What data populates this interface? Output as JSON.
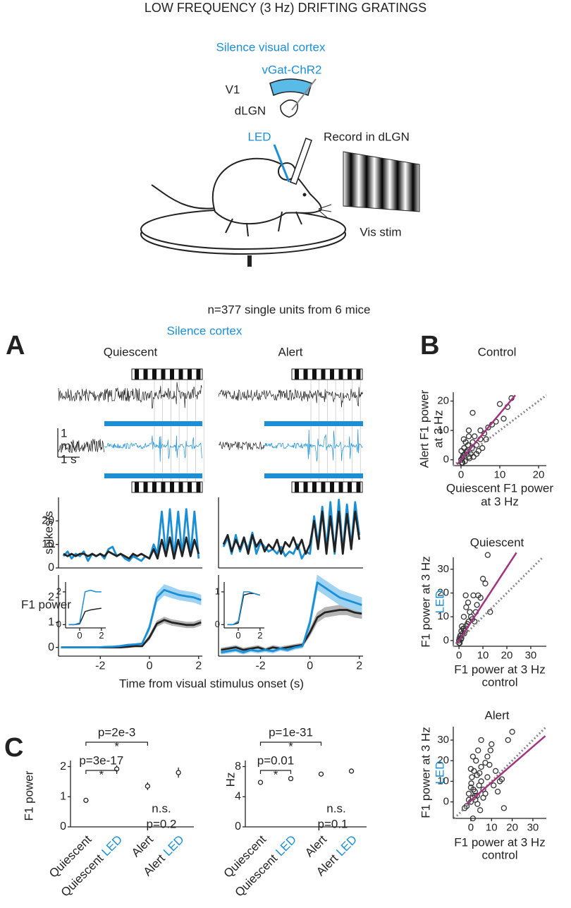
{
  "title": "LOW FREQUENCY (3 Hz) DRIFTING GRATINGS",
  "schematic": {
    "silence": "Silence visual cortex",
    "construct": "vGat-ChR2",
    "v1": "V1",
    "dlgn": "dLGN",
    "led": "LED",
    "record": "Record in dLGN",
    "stim": "Vis stim"
  },
  "sample": "n=377 single units from 6 mice",
  "panel_a": {
    "label": "A",
    "silence": "Silence cortex",
    "scale_bar": {
      "amplitude": "1",
      "unit": "mV",
      "time": "1 s"
    },
    "xlabel": "Time from visual stimulus onset (s)"
  },
  "panel_b": {
    "label": "B"
  },
  "panel_c": {
    "label": "C"
  },
  "chart_data": [
    {
      "type": "line",
      "title": "Quiescent",
      "ylabel": "spikes/s",
      "x": [
        -3.5,
        -3.33,
        -3.17,
        -3,
        -2.83,
        -2.67,
        -2.5,
        -2.33,
        -2.17,
        -2,
        -1.83,
        -1.67,
        -1.5,
        -1.33,
        -1.17,
        -1,
        -0.83,
        -0.67,
        -0.5,
        -0.33,
        -0.17,
        0,
        0.17,
        0.33,
        0.5,
        0.67,
        0.83,
        1,
        1.17,
        1.33,
        1.5,
        1.67,
        1.83,
        2
      ],
      "xlim": [
        -3.7,
        2.15
      ],
      "ylim": [
        0,
        30
      ],
      "yticks": [
        0,
        10,
        20
      ],
      "series": [
        {
          "color": "#1b8fd6",
          "values": [
            5,
            7,
            4,
            6,
            5,
            7,
            3,
            6,
            5,
            6,
            4,
            8,
            9,
            5,
            6,
            4,
            3,
            5,
            4,
            3,
            5,
            4,
            10,
            6,
            24,
            5,
            25,
            4,
            24,
            5,
            25,
            5,
            24,
            4
          ]
        },
        {
          "color": "#222222",
          "values": [
            6,
            5,
            6,
            5,
            6,
            6,
            5,
            6,
            5,
            6,
            5,
            7,
            6,
            5,
            6,
            5,
            4,
            6,
            5,
            6,
            5,
            4,
            8,
            4,
            12,
            5,
            13,
            4,
            12,
            5,
            13,
            5,
            12,
            6
          ]
        }
      ]
    },
    {
      "type": "line",
      "title": "Alert",
      "x": [
        -3.5,
        -3.33,
        -3.17,
        -3,
        -2.83,
        -2.67,
        -2.5,
        -2.33,
        -2.17,
        -2,
        -1.83,
        -1.67,
        -1.5,
        -1.33,
        -1.17,
        -1,
        -0.83,
        -0.67,
        -0.5,
        -0.33,
        -0.17,
        0,
        0.17,
        0.33,
        0.5,
        0.67,
        0.83,
        1,
        1.17,
        1.33,
        1.5,
        1.67,
        1.83,
        2
      ],
      "xlim": [
        -3.7,
        2.15
      ],
      "ylim": [
        0,
        30
      ],
      "series": [
        {
          "color": "#1b8fd6",
          "values": [
            9,
            13,
            6,
            14,
            7,
            12,
            8,
            15,
            6,
            11,
            9,
            7,
            8,
            6,
            9,
            5,
            7,
            6,
            10,
            4,
            7,
            6,
            22,
            10,
            26,
            8,
            28,
            6,
            29,
            7,
            27,
            9,
            28,
            14
          ]
        },
        {
          "color": "#222222",
          "values": [
            10,
            14,
            7,
            12,
            8,
            13,
            6,
            14,
            9,
            12,
            7,
            10,
            8,
            12,
            6,
            11,
            9,
            13,
            8,
            12,
            6,
            10,
            20,
            8,
            24,
            6,
            22,
            7,
            24,
            6,
            23,
            8,
            24,
            12
          ]
        }
      ]
    },
    {
      "type": "line",
      "ylabel": "F1 power",
      "x": [
        -3.6,
        -3.3,
        -3.0,
        -2.7,
        -2.4,
        -2.1,
        -1.8,
        -1.5,
        -1.2,
        -0.9,
        -0.6,
        -0.3,
        0,
        0.3,
        0.6,
        0.9,
        1.2,
        1.5,
        1.8,
        2.1
      ],
      "xlim": [
        -3.7,
        2.15
      ],
      "ylim": [
        -0.35,
        2.9
      ],
      "yticks": [
        0,
        1,
        2
      ],
      "xticks": [
        -2,
        0,
        2
      ],
      "series": [
        {
          "color": "#222222",
          "band_color": "#b3b3b3",
          "values": [
            0,
            0,
            0,
            0,
            0,
            0,
            0,
            0,
            0,
            0.02,
            0.05,
            0.05,
            0.4,
            0.95,
            1.1,
            1.0,
            0.95,
            0.9,
            0.9,
            1.0
          ],
          "errors": [
            0.03,
            0.03,
            0.03,
            0.03,
            0.03,
            0.03,
            0.03,
            0.03,
            0.03,
            0.03,
            0.03,
            0.03,
            0.1,
            0.12,
            0.12,
            0.12,
            0.12,
            0.12,
            0.12,
            0.12
          ]
        },
        {
          "color": "#1b8fd6",
          "band_color": "#9fd3f2",
          "values": [
            0,
            0,
            0,
            0,
            0,
            0,
            0.02,
            0.03,
            0.05,
            0.1,
            0.12,
            0.15,
            0.8,
            2.0,
            2.3,
            2.2,
            2.1,
            2.05,
            2.0,
            1.9
          ],
          "errors": [
            0.03,
            0.03,
            0.03,
            0.03,
            0.03,
            0.03,
            0.03,
            0.03,
            0.03,
            0.03,
            0.03,
            0.03,
            0.15,
            0.2,
            0.22,
            0.22,
            0.2,
            0.2,
            0.2,
            0.2
          ]
        }
      ]
    },
    {
      "type": "line",
      "x": [
        -3.6,
        -3.3,
        -3.0,
        -2.7,
        -2.4,
        -2.1,
        -1.8,
        -1.5,
        -1.2,
        -0.9,
        -0.6,
        -0.3,
        0,
        0.3,
        0.6,
        0.9,
        1.2,
        1.5,
        1.8,
        2.1
      ],
      "xlim": [
        -3.7,
        2.15
      ],
      "ylim": [
        -0.35,
        2.9
      ],
      "xticks": [
        -2,
        0,
        2
      ],
      "series": [
        {
          "color": "#222222",
          "band_color": "#b3b3b3",
          "values": [
            -0.1,
            -0.05,
            0,
            -0.1,
            -0.05,
            0,
            -0.1,
            0,
            -0.05,
            0,
            0.05,
            0.1,
            0.6,
            1.2,
            1.4,
            1.45,
            1.5,
            1.5,
            1.4,
            1.35
          ],
          "errors": [
            0.08,
            0.08,
            0.08,
            0.08,
            0.08,
            0.08,
            0.08,
            0.08,
            0.08,
            0.08,
            0.08,
            0.08,
            0.15,
            0.2,
            0.2,
            0.2,
            0.2,
            0.2,
            0.2,
            0.2
          ]
        },
        {
          "color": "#1b8fd6",
          "band_color": "#9fd3f2",
          "values": [
            -0.2,
            -0.15,
            -0.1,
            -0.2,
            -0.1,
            -0.15,
            -0.1,
            -0.15,
            -0.05,
            -0.1,
            0,
            0.05,
            1.0,
            2.6,
            2.4,
            2.2,
            2.0,
            1.9,
            1.8,
            1.7
          ],
          "errors": [
            0.08,
            0.08,
            0.08,
            0.08,
            0.08,
            0.08,
            0.08,
            0.08,
            0.08,
            0.08,
            0.08,
            0.08,
            0.2,
            0.3,
            0.3,
            0.3,
            0.3,
            0.3,
            0.3,
            0.3
          ]
        }
      ]
    },
    {
      "type": "line",
      "x": [
        -1,
        -0.5,
        0,
        0.5,
        1,
        1.5,
        2
      ],
      "xlim": [
        -1.3,
        2.4
      ],
      "ylim": [
        -0.2,
        2.6
      ],
      "yticks": [
        0,
        2
      ],
      "xticks": [
        0,
        2
      ],
      "series": [
        {
          "color": "#222222",
          "values": [
            0,
            0,
            0.05,
            0.8,
            0.9,
            0.95,
            1.0
          ]
        },
        {
          "color": "#1b8fd6",
          "values": [
            0,
            0,
            0.1,
            2.0,
            2.1,
            2.0,
            2.0
          ]
        }
      ]
    },
    {
      "type": "line",
      "x": [
        -1,
        -0.5,
        0,
        0.5,
        1,
        1.5,
        2
      ],
      "xlim": [
        -1.3,
        2.4
      ],
      "ylim": [
        -0.1,
        1.3
      ],
      "yticks": [
        0,
        1
      ],
      "xticks": [
        0,
        2
      ],
      "series": [
        {
          "color": "#222222",
          "values": [
            0,
            0,
            0.05,
            0.9,
            0.95,
            0.95,
            0.9
          ]
        },
        {
          "color": "#1b8fd6",
          "values": [
            0,
            0,
            0.1,
            1.0,
            1.0,
            0.95,
            0.9
          ]
        }
      ]
    },
    {
      "type": "scatter",
      "title": "Control",
      "ylabel": [
        "Alert F1 power",
        "at 3 Hz"
      ],
      "xlabel": [
        "Quiescent F1 power",
        "at 3 Hz"
      ],
      "ylabel_colors": [
        "#222222",
        "#222222"
      ],
      "color": "#333333",
      "xlim": [
        -2,
        22
      ],
      "ylim": [
        -2,
        23
      ],
      "xticks": [
        0,
        10,
        20
      ],
      "yticks": [
        0,
        10,
        20
      ],
      "x": [
        0,
        0.5,
        1,
        0.2,
        1.5,
        2,
        0.8,
        3,
        2.5,
        1,
        0.3,
        4,
        3.5,
        5,
        2,
        6,
        4.5,
        1.2,
        0.6,
        7,
        8,
        5.5,
        3,
        10,
        12,
        13,
        9,
        2.2,
        0.1,
        1.8,
        4,
        6.5,
        0.4,
        2.8,
        11,
        3.2,
        1.5,
        0.7,
        5,
        2
      ],
      "values": [
        0,
        1,
        2,
        -1,
        3,
        1,
        4,
        6,
        2,
        -0.5,
        0.5,
        5,
        8,
        7,
        10,
        9,
        3,
        6,
        1.5,
        11,
        12,
        4,
        16,
        19,
        18,
        21,
        13,
        0.5,
        3,
        5,
        2,
        7,
        -1,
        4,
        14,
        1,
        2.5,
        7,
        10,
        8
      ],
      "identity_line": {
        "color": "#888888"
      },
      "fit_line": {
        "color": "#a2347e",
        "x": [
          -1,
          14
        ],
        "y": [
          -1.6,
          22
        ]
      }
    },
    {
      "type": "scatter",
      "title": "Quiescent",
      "ylabel": [
        "F1 power at 3 Hz",
        "LED"
      ],
      "xlabel": [
        "F1 power at 3 Hz",
        "control"
      ],
      "ylabel_colors": [
        "#222222",
        "#1b8fd6"
      ],
      "color": "#333333",
      "xlim": [
        -2.4,
        36.5
      ],
      "ylim": [
        -2.4,
        35
      ],
      "xticks": [
        0,
        10,
        20,
        30
      ],
      "yticks": [
        0,
        10,
        20,
        30
      ],
      "x": [
        0,
        0.5,
        1,
        2,
        1.5,
        3,
        0.3,
        4,
        2.5,
        5,
        6,
        3.5,
        8,
        10,
        12,
        11,
        7,
        1,
        2,
        0.8,
        4.5,
        9,
        5.5,
        3,
        1.2,
        0.2,
        2.2,
        6.5,
        13,
        0.6,
        3.8,
        1.8,
        7.5,
        2.8,
        0
      ],
      "values": [
        0,
        2,
        1,
        5,
        3,
        6,
        -1,
        8,
        4,
        10,
        19,
        7,
        19,
        26,
        36,
        24,
        12,
        4,
        10,
        0.5,
        12,
        18,
        9,
        14,
        6,
        1,
        3,
        8,
        12,
        2,
        16,
        5,
        15,
        19,
        -1
      ],
      "identity_line": {
        "color": "#888888"
      },
      "fit_line": {
        "color": "#a2347e",
        "x": [
          -1,
          24
        ],
        "y": [
          -1.5,
          37
        ]
      }
    },
    {
      "type": "scatter",
      "title": "Alert",
      "ylabel": [
        "F1 power at 3 Hz",
        "LED"
      ],
      "xlabel": [
        "F1 power at 3 Hz",
        "control"
      ],
      "ylabel_colors": [
        "#222222",
        "#1b8fd6"
      ],
      "color": "#333333",
      "xlim": [
        -8.5,
        36.5
      ],
      "ylim": [
        -8,
        36.5
      ],
      "xticks": [
        0,
        10,
        20,
        30
      ],
      "yticks": [
        0,
        10,
        20,
        30
      ],
      "x": [
        0,
        1,
        2,
        3,
        4,
        5,
        6,
        -2,
        -1,
        0.5,
        1.5,
        2.5,
        3.5,
        8,
        10,
        12,
        14,
        18,
        20,
        9,
        7,
        4.5,
        1,
        0,
        2,
        3,
        5,
        6,
        8,
        11,
        15,
        -3,
        -1,
        0.2,
        1.2,
        2.2,
        3.2,
        4.2,
        7,
        9.5,
        13,
        16,
        0,
        1,
        5
      ],
      "values": [
        0,
        2,
        5,
        3,
        8,
        10,
        6,
        -2,
        1,
        12,
        15,
        20,
        25,
        22,
        28,
        15,
        10,
        30,
        34,
        18,
        4,
        -4,
        -8,
        7,
        3,
        13,
        17,
        2,
        12,
        8,
        11,
        -3,
        4,
        9,
        6,
        1,
        -1,
        14,
        19,
        25,
        5,
        -3,
        16,
        22,
        30
      ],
      "identity_line": {
        "color": "#888888"
      },
      "fit_line": {
        "color": "#a2347e",
        "x": [
          -2,
          36
        ],
        "y": [
          -1,
          32
        ]
      }
    },
    {
      "type": "errorbar",
      "ylabel": "F1 power",
      "categories": [
        [
          "Quiescent"
        ],
        [
          "Quiescent",
          "LED"
        ],
        [
          "Alert"
        ],
        [
          "Alert",
          "LED"
        ]
      ],
      "category_part_colors": [
        "#222222",
        "#1b8fd6"
      ],
      "color": "#222222",
      "ylim": [
        0,
        2.2
      ],
      "yticks": [
        0,
        1,
        2
      ],
      "values": [
        0.88,
        1.92,
        1.35,
        1.8
      ],
      "errors": [
        0.07,
        0.12,
        0.13,
        0.17
      ],
      "brackets": [
        {
          "between": [
            0,
            2
          ],
          "p": "p=2e-3",
          "star": "*"
        },
        {
          "between": [
            0,
            1
          ],
          "p": "p=3e-17",
          "star": "*"
        }
      ],
      "notes": [
        "n.s.",
        "p=0.2"
      ]
    },
    {
      "type": "errorbar",
      "ylabel": "Hz",
      "categories": [
        [
          "Quiescent"
        ],
        [
          "Quiescent",
          "LED"
        ],
        [
          "Alert"
        ],
        [
          "Alert",
          "LED"
        ]
      ],
      "category_part_colors": [
        "#222222",
        "#1b8fd6"
      ],
      "color": "#222222",
      "ylim": [
        0,
        8.8
      ],
      "yticks": [
        0,
        4,
        8
      ],
      "values": [
        5.9,
        6.4,
        7.0,
        7.4
      ],
      "errors": [
        0.2,
        0.25,
        0.2,
        0.2
      ],
      "brackets": [
        {
          "between": [
            0,
            2
          ],
          "p": "p=1e-31",
          "star": "*"
        },
        {
          "between": [
            0,
            1
          ],
          "p": "p=0.01",
          "star": "*"
        }
      ],
      "notes": [
        "n.s.",
        "p=0.1"
      ]
    }
  ]
}
